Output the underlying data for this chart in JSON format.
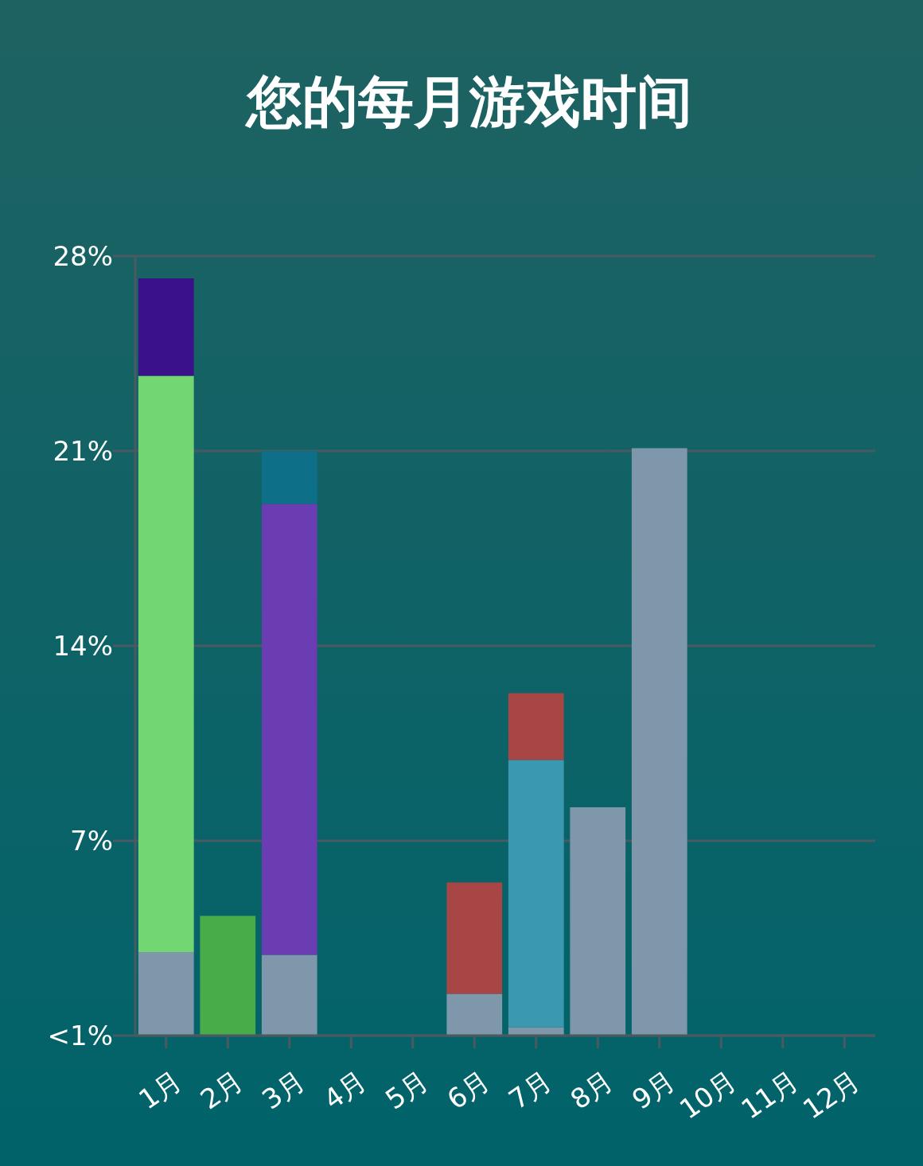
{
  "chart_data": {
    "type": "bar",
    "title": "您的每月游戏时间",
    "stacked": true,
    "grid": "y",
    "categories": [
      "1月",
      "2月",
      "3月",
      "4月",
      "5月",
      "6月",
      "7月",
      "8月",
      "9月",
      "10月",
      "11月",
      "12月"
    ],
    "ylim": [
      0,
      28
    ],
    "yticks": [
      {
        "value": 0,
        "label": "<1%"
      },
      {
        "value": 7,
        "label": "7%"
      },
      {
        "value": 14,
        "label": "14%"
      },
      {
        "value": 21,
        "label": "21%"
      },
      {
        "value": 28,
        "label": "28%"
      }
    ],
    "series": [
      {
        "color": "#7f97aa",
        "values": [
          3.0,
          null,
          2.9,
          null,
          null,
          1.5,
          0.3,
          8.2,
          21.1,
          null,
          null,
          null
        ]
      },
      {
        "color": "#72d672",
        "values": [
          20.7,
          null,
          null,
          null,
          null,
          null,
          null,
          null,
          null,
          null,
          null,
          null
        ]
      },
      {
        "color": "#48ac48",
        "values": [
          null,
          4.3,
          null,
          null,
          null,
          null,
          null,
          null,
          null,
          null,
          null,
          null
        ]
      },
      {
        "color": "#6a3db3",
        "values": [
          null,
          null,
          16.2,
          null,
          null,
          null,
          null,
          null,
          null,
          null,
          null,
          null
        ]
      },
      {
        "color": "#3a98b0",
        "values": [
          null,
          null,
          null,
          null,
          null,
          null,
          9.6,
          null,
          null,
          null,
          null,
          null
        ]
      },
      {
        "color": "#a84646",
        "values": [
          null,
          null,
          null,
          null,
          null,
          4.0,
          2.4,
          null,
          null,
          null,
          null,
          null
        ]
      },
      {
        "color": "#0e6f88",
        "values": [
          null,
          null,
          1.9,
          null,
          null,
          null,
          null,
          null,
          null,
          null,
          null,
          null
        ]
      },
      {
        "color": "#3a118a",
        "values": [
          3.5,
          null,
          null,
          null,
          null,
          null,
          null,
          null,
          null,
          null,
          null,
          null
        ]
      }
    ]
  }
}
